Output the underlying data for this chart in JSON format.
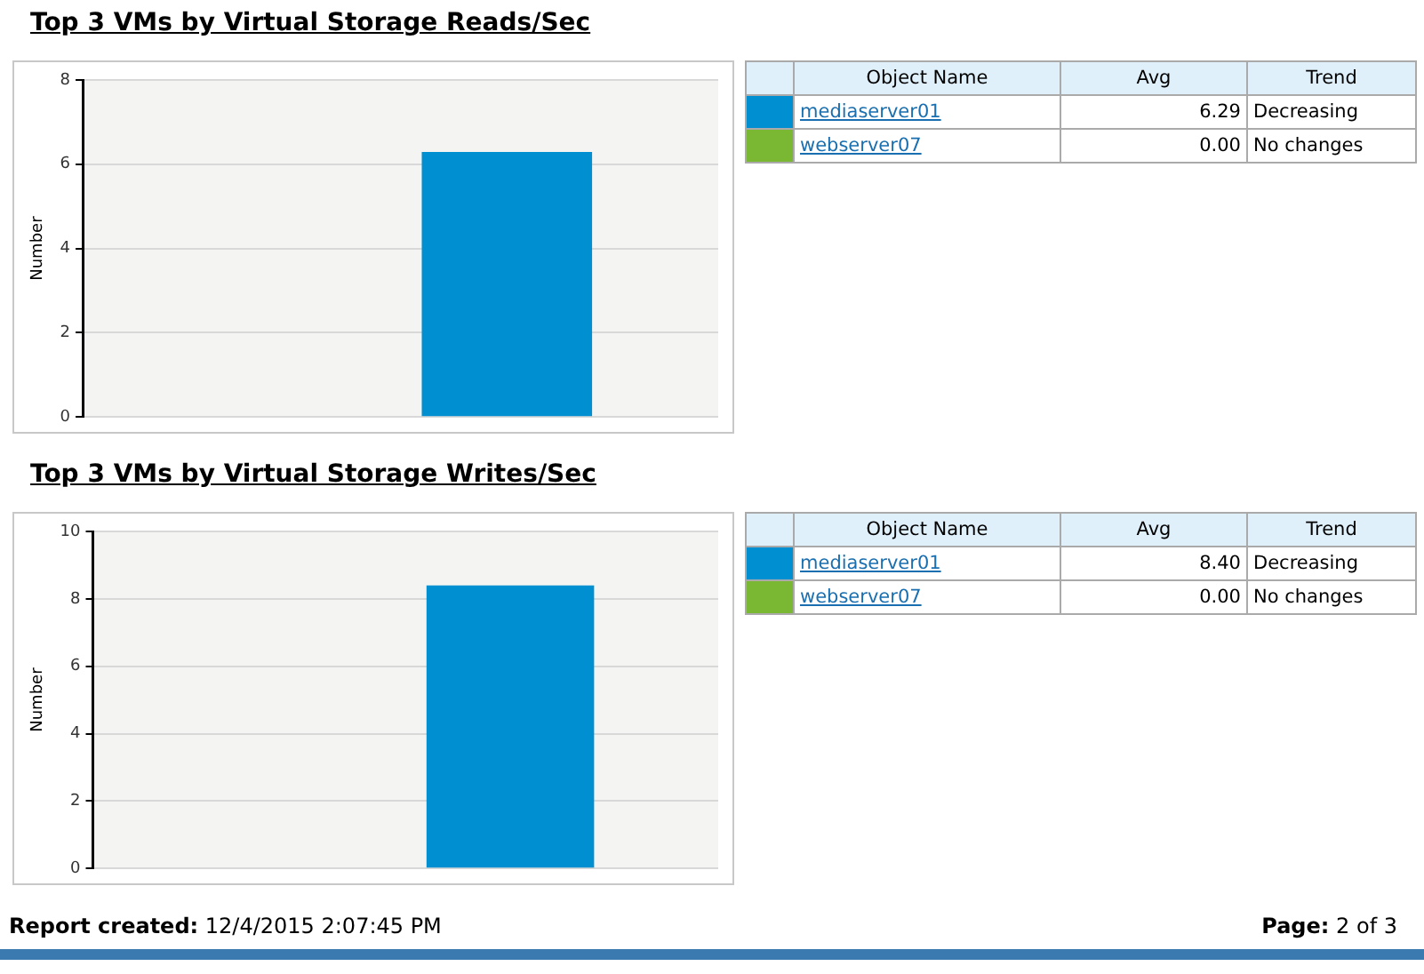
{
  "chart_data": [
    {
      "type": "bar",
      "title": "Top 3 VMs by Virtual Storage Reads/Sec",
      "ylabel": "Number",
      "categories": [
        null
      ],
      "ylim": [
        0,
        8
      ],
      "yticks": [
        0,
        2,
        4,
        6,
        8
      ],
      "grid": "y",
      "legend": "right",
      "series": [
        {
          "name": "webserver07",
          "color": "#7ab733",
          "values": [
            0
          ]
        },
        {
          "name": "mediaserver01",
          "color": "#008fd0",
          "values": [
            6.29
          ]
        }
      ],
      "annotations": [
        "Object Name",
        "Avg",
        "Trend",
        "6.29",
        "Decreasing",
        "0.00",
        "No changes"
      ]
    },
    {
      "type": "bar",
      "title": "Top 3 VMs by Virtual Storage Writes/Sec",
      "ylabel": "Number",
      "categories": [
        null
      ],
      "ylim": [
        0,
        10
      ],
      "yticks": [
        0,
        2,
        4,
        6,
        8,
        10
      ],
      "grid": "y",
      "legend": "right",
      "series": [
        {
          "name": "webserver07",
          "color": "#7ab733",
          "values": [
            0
          ]
        },
        {
          "name": "mediaserver01",
          "color": "#008fd0",
          "values": [
            8.4
          ]
        }
      ],
      "annotations": [
        "Object Name",
        "Avg",
        "Trend",
        "8.40",
        "Decreasing",
        "0.00",
        "No changes"
      ]
    },
    {
      "type": "other",
      "annotations": [
        "Report created:",
        "12/4/2015 2:07:45 PM",
        "Page:",
        "2 of 3"
      ]
    }
  ]
}
